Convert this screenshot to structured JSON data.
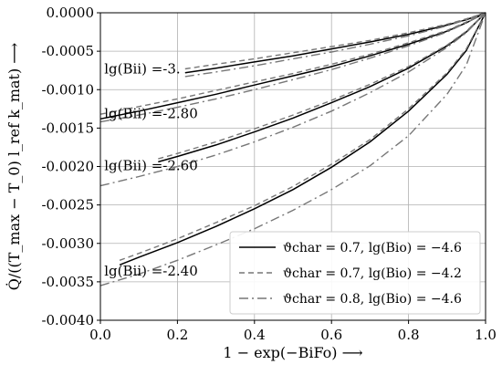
{
  "chart_data": {
    "type": "line",
    "xlabel": "1 − exp(−BiFo) ⟶",
    "ylabel": "Q̇/((T_max − T_0) l_ref k_mat) ⟶",
    "xlim": [
      0.0,
      1.0
    ],
    "ylim": [
      -0.004,
      0.0
    ],
    "xticks": [
      "0.0",
      "0.2",
      "0.4",
      "0.6",
      "0.8",
      "1.0"
    ],
    "yticks": [
      "0.0000",
      "-0.0005",
      "-0.0010",
      "-0.0015",
      "-0.0020",
      "-0.0025",
      "-0.0030",
      "-0.0035",
      "-0.0040"
    ],
    "grid": true,
    "legend_position": "lower-right",
    "legend": [
      {
        "style": "solid",
        "color": "#000000",
        "label": "ϑchar = 0.7, lg(Bio) = −4.6"
      },
      {
        "style": "dashed",
        "color": "#777777",
        "label": "ϑchar = 0.7, lg(Bio) = −4.2"
      },
      {
        "style": "dashdot",
        "color": "#777777",
        "label": "ϑchar = 0.8, lg(Bio) = −4.6"
      }
    ],
    "annotations": [
      {
        "text": "lg(Bii) =-3.",
        "x": 0.01,
        "y": -0.00073
      },
      {
        "text": "lg(Bii) =-2.80",
        "x": 0.01,
        "y": -0.00131
      },
      {
        "text": "lg(Bii) =-2.60",
        "x": 0.01,
        "y": -0.00199
      },
      {
        "text": "lg(Bii) =-2.40",
        "x": 0.01,
        "y": -0.00336
      }
    ],
    "series": [
      {
        "group": "-3",
        "style": "solid",
        "color": "#000000",
        "x": [
          0.22,
          0.3,
          0.4,
          0.5,
          0.6,
          0.7,
          0.8,
          0.9,
          0.95,
          1.0
        ],
        "y": [
          -0.00078,
          -0.00072,
          -0.00064,
          -0.00056,
          -0.00047,
          -0.00038,
          -0.00028,
          -0.00016,
          -9e-05,
          0.0
        ]
      },
      {
        "group": "-3",
        "style": "dashed",
        "color": "#777777",
        "x": [
          0.22,
          0.3,
          0.4,
          0.5,
          0.6,
          0.7,
          0.8,
          0.9,
          0.95,
          1.0
        ],
        "y": [
          -0.00073,
          -0.00067,
          -0.0006,
          -0.00052,
          -0.00044,
          -0.00036,
          -0.00026,
          -0.00015,
          -8e-05,
          0.0
        ]
      },
      {
        "group": "-3",
        "style": "dashdot",
        "color": "#777777",
        "x": [
          0.22,
          0.3,
          0.4,
          0.5,
          0.6,
          0.7,
          0.8,
          0.9,
          0.95,
          1.0
        ],
        "y": [
          -0.00083,
          -0.00077,
          -0.00069,
          -0.0006,
          -0.00051,
          -0.00041,
          -0.0003,
          -0.00017,
          -9e-05,
          0.0
        ]
      },
      {
        "group": "-2.80",
        "style": "solid",
        "color": "#000000",
        "x": [
          0.0,
          0.1,
          0.2,
          0.3,
          0.4,
          0.5,
          0.6,
          0.7,
          0.8,
          0.9,
          0.95,
          1.0
        ],
        "y": [
          -0.00138,
          -0.00128,
          -0.00117,
          -0.00106,
          -0.00094,
          -0.00082,
          -0.0007,
          -0.00056,
          -0.00041,
          -0.00024,
          -0.00013,
          0.0
        ]
      },
      {
        "group": "-2.80",
        "style": "dashed",
        "color": "#777777",
        "x": [
          0.0,
          0.1,
          0.2,
          0.3,
          0.4,
          0.5,
          0.6,
          0.7,
          0.8,
          0.9,
          0.95,
          1.0
        ],
        "y": [
          -0.00132,
          -0.00122,
          -0.00112,
          -0.00101,
          -0.0009,
          -0.00079,
          -0.00067,
          -0.00054,
          -0.00039,
          -0.00023,
          -0.00012,
          0.0
        ]
      },
      {
        "group": "-2.80",
        "style": "dashdot",
        "color": "#777777",
        "x": [
          0.0,
          0.1,
          0.2,
          0.3,
          0.4,
          0.5,
          0.6,
          0.7,
          0.8,
          0.9,
          0.95,
          1.0
        ],
        "y": [
          -0.00142,
          -0.00133,
          -0.00123,
          -0.00112,
          -0.001,
          -0.00087,
          -0.00074,
          -0.00059,
          -0.00043,
          -0.00025,
          -0.00013,
          0.0
        ]
      },
      {
        "group": "-2.60",
        "style": "solid",
        "color": "#000000",
        "x": [
          0.15,
          0.2,
          0.3,
          0.4,
          0.5,
          0.6,
          0.7,
          0.8,
          0.9,
          0.95,
          1.0
        ],
        "y": [
          -0.00194,
          -0.00187,
          -0.00172,
          -0.00155,
          -0.00137,
          -0.00117,
          -0.00096,
          -0.00072,
          -0.00043,
          -0.00025,
          0.0
        ]
      },
      {
        "group": "-2.60",
        "style": "dashed",
        "color": "#777777",
        "x": [
          0.15,
          0.2,
          0.3,
          0.4,
          0.5,
          0.6,
          0.7,
          0.8,
          0.9,
          0.95,
          1.0
        ],
        "y": [
          -0.0019,
          -0.00183,
          -0.00168,
          -0.00151,
          -0.00133,
          -0.00114,
          -0.00093,
          -0.0007,
          -0.00042,
          -0.00024,
          0.0
        ]
      },
      {
        "group": "-2.60",
        "style": "dashdot",
        "color": "#777777",
        "x": [
          0.0,
          0.1,
          0.2,
          0.3,
          0.4,
          0.5,
          0.6,
          0.7,
          0.8,
          0.9,
          0.95,
          1.0
        ],
        "y": [
          -0.00225,
          -0.00213,
          -0.002,
          -0.00185,
          -0.00168,
          -0.00149,
          -0.00128,
          -0.00104,
          -0.00077,
          -0.00045,
          -0.00026,
          0.0
        ]
      },
      {
        "group": "-2.40",
        "style": "solid",
        "color": "#000000",
        "x": [
          0.05,
          0.1,
          0.2,
          0.3,
          0.4,
          0.5,
          0.6,
          0.7,
          0.8,
          0.9,
          0.95,
          1.0
        ],
        "y": [
          -0.00328,
          -0.00318,
          -0.00299,
          -0.00278,
          -0.00255,
          -0.0023,
          -0.00201,
          -0.00168,
          -0.00128,
          -0.0008,
          -0.00049,
          0.0
        ]
      },
      {
        "group": "-2.40",
        "style": "dashed",
        "color": "#777777",
        "x": [
          0.05,
          0.1,
          0.2,
          0.3,
          0.4,
          0.5,
          0.6,
          0.7,
          0.8,
          0.9,
          0.95,
          1.0
        ],
        "y": [
          -0.00322,
          -0.00313,
          -0.00294,
          -0.00273,
          -0.00251,
          -0.00226,
          -0.00197,
          -0.00165,
          -0.00125,
          -0.00078,
          -0.00047,
          0.0
        ]
      },
      {
        "group": "-2.40",
        "style": "dashdot",
        "color": "#777777",
        "x": [
          0.0,
          0.1,
          0.2,
          0.3,
          0.4,
          0.5,
          0.6,
          0.7,
          0.8,
          0.9,
          0.95,
          1.0
        ],
        "y": [
          -0.00355,
          -0.0034,
          -0.00322,
          -0.00302,
          -0.00281,
          -0.00257,
          -0.0023,
          -0.00199,
          -0.0016,
          -0.00106,
          -0.00068,
          0.0
        ]
      }
    ]
  }
}
